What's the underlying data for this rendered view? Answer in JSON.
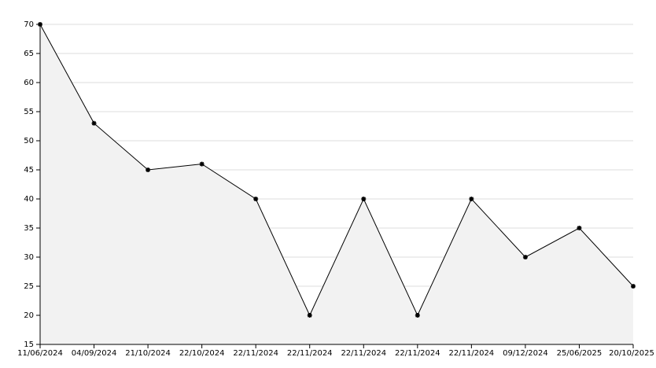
{
  "chart_data": {
    "type": "area",
    "categories": [
      "11/06/2024",
      "04/09/2024",
      "21/10/2024",
      "22/10/2024",
      "22/11/2024",
      "22/11/2024",
      "22/11/2024",
      "22/11/2024",
      "22/11/2024",
      "09/12/2024",
      "25/06/2025",
      "20/10/2025"
    ],
    "values": [
      70,
      53,
      45,
      46,
      40,
      20,
      40,
      20,
      40,
      30,
      35,
      25
    ],
    "color": "#000000",
    "fill": "#f2f2f2",
    "ylim": [
      15,
      70
    ],
    "yticks": [
      15,
      20,
      25,
      30,
      35,
      40,
      45,
      50,
      55,
      60,
      65,
      70
    ],
    "grid": true
  }
}
